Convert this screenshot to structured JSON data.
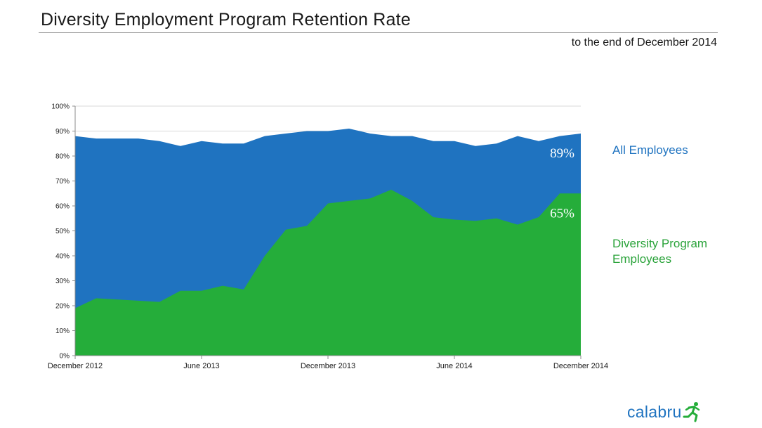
{
  "title": "Diversity Employment Program Retention Rate",
  "subtitle": "to the end of December 2014",
  "logo": {
    "text": "calabru",
    "icon": "running-person-icon"
  },
  "colors": {
    "all_employees": "#1f73c0",
    "diversity": "#25ad3a",
    "grid": "#d9d9d9"
  },
  "chart_data": {
    "type": "area",
    "title": "Diversity Employment Program Retention Rate",
    "subtitle": "to the end of December 2014",
    "x": [
      "Dec 2012",
      "Jan 2013",
      "Feb 2013",
      "Mar 2013",
      "Apr 2013",
      "May 2013",
      "Jun 2013",
      "Jul 2013",
      "Aug 2013",
      "Sep 2013",
      "Oct 2013",
      "Nov 2013",
      "Dec 2013",
      "Jan 2014",
      "Feb 2014",
      "Mar 2014",
      "Apr 2014",
      "May 2014",
      "Jun 2014",
      "Jul 2014",
      "Aug 2014",
      "Sep 2014",
      "Oct 2014",
      "Nov 2014",
      "Dec 2014"
    ],
    "xtick_labels": [
      "December 2012",
      "June 2013",
      "December 2013",
      "June 2014",
      "December 2014"
    ],
    "xtick_positions": [
      0,
      6,
      12,
      18,
      24
    ],
    "yticks": [
      "0%",
      "10%",
      "20%",
      "30%",
      "40%",
      "50%",
      "60%",
      "70%",
      "80%",
      "90%",
      "100%"
    ],
    "ylim": [
      0,
      100
    ],
    "grid": "horizontal",
    "series": [
      {
        "name": "All Employees",
        "color": "#1f73c0",
        "end_label": "89%",
        "values": [
          88,
          87,
          87,
          87,
          86,
          84,
          86,
          85,
          85,
          88,
          89,
          90,
          90,
          91,
          89,
          88,
          88,
          86,
          86,
          84,
          85,
          88,
          86,
          88,
          89
        ]
      },
      {
        "name": "Diversity Program Employees",
        "color": "#25ad3a",
        "end_label": "65%",
        "values": [
          19,
          23,
          22.5,
          22,
          21.5,
          26,
          26,
          28,
          26.5,
          40,
          50.5,
          52,
          61,
          62,
          63,
          66.5,
          62,
          55.5,
          54.5,
          54,
          55,
          52.5,
          55.5,
          65,
          65
        ]
      }
    ]
  }
}
